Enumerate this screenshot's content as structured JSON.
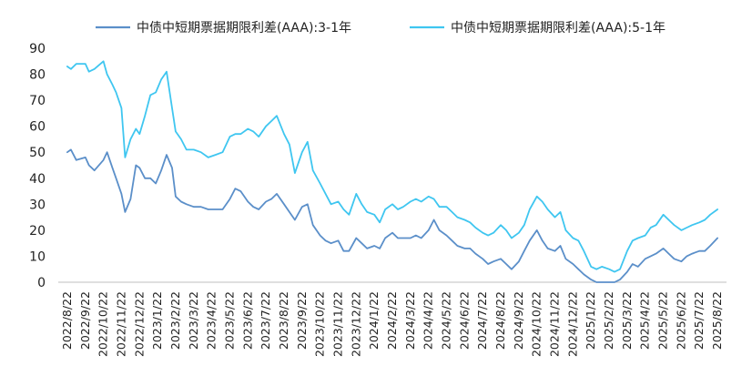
{
  "chart_data": {
    "type": "line",
    "title": "",
    "xlabel": "",
    "ylabel": "",
    "ylim": [
      0,
      90
    ],
    "yticks": [
      0,
      10,
      20,
      30,
      40,
      50,
      60,
      70,
      80,
      90
    ],
    "grid": false,
    "legend_position": "top",
    "categories": [
      "2022/8/22",
      "2022/9/22",
      "2022/10/22",
      "2022/11/22",
      "2022/12/22",
      "2023/1/22",
      "2023/2/22",
      "2023/3/22",
      "2023/4/22",
      "2023/5/22",
      "2023/6/22",
      "2023/7/22",
      "2023/8/22",
      "2023/9/22",
      "2023/10/22",
      "2023/11/22",
      "2023/12/22",
      "2024/1/22",
      "2024/2/22",
      "2024/3/22",
      "2024/4/22",
      "2024/5/22",
      "2024/6/22",
      "2024/7/22",
      "2024/8/22",
      "2024/9/22",
      "2024/10/22",
      "2024/11/22",
      "2024/12/22",
      "2025/1/22",
      "2025/2/22",
      "2025/3/22",
      "2025/4/22",
      "2025/5/22",
      "2025/6/22",
      "2025/7/22",
      "2025/8/22"
    ],
    "series": [
      {
        "name": "中债中短期票据期限利差(AAA):3-1年",
        "color": "#5b8fc9",
        "points": [
          [
            0,
            50
          ],
          [
            0.2,
            51
          ],
          [
            0.5,
            47
          ],
          [
            1,
            48
          ],
          [
            1.2,
            45
          ],
          [
            1.5,
            43
          ],
          [
            2,
            47
          ],
          [
            2.2,
            50
          ],
          [
            2.5,
            44
          ],
          [
            2.7,
            40
          ],
          [
            3,
            34
          ],
          [
            3.2,
            27
          ],
          [
            3.5,
            32
          ],
          [
            3.8,
            45
          ],
          [
            4,
            44
          ],
          [
            4.3,
            40
          ],
          [
            4.6,
            40
          ],
          [
            4.9,
            38
          ],
          [
            5.2,
            43
          ],
          [
            5.5,
            49
          ],
          [
            5.8,
            44
          ],
          [
            6,
            33
          ],
          [
            6.3,
            31
          ],
          [
            6.6,
            30
          ],
          [
            7,
            29
          ],
          [
            7.4,
            29
          ],
          [
            7.8,
            28
          ],
          [
            8.2,
            28
          ],
          [
            8.6,
            28
          ],
          [
            9,
            32
          ],
          [
            9.3,
            36
          ],
          [
            9.6,
            35
          ],
          [
            10,
            31
          ],
          [
            10.3,
            29
          ],
          [
            10.6,
            28
          ],
          [
            11,
            31
          ],
          [
            11.3,
            32
          ],
          [
            11.6,
            34
          ],
          [
            12,
            30
          ],
          [
            12.3,
            27
          ],
          [
            12.6,
            24
          ],
          [
            13,
            29
          ],
          [
            13.3,
            30
          ],
          [
            13.6,
            22
          ],
          [
            14,
            18
          ],
          [
            14.3,
            16
          ],
          [
            14.6,
            15
          ],
          [
            15,
            16
          ],
          [
            15.3,
            12
          ],
          [
            15.6,
            12
          ],
          [
            16,
            17
          ],
          [
            16.3,
            15
          ],
          [
            16.6,
            13
          ],
          [
            17,
            14
          ],
          [
            17.3,
            13
          ],
          [
            17.6,
            17
          ],
          [
            18,
            19
          ],
          [
            18.3,
            17
          ],
          [
            18.6,
            17
          ],
          [
            19,
            17
          ],
          [
            19.3,
            18
          ],
          [
            19.6,
            17
          ],
          [
            20,
            20
          ],
          [
            20.3,
            24
          ],
          [
            20.6,
            20
          ],
          [
            21,
            18
          ],
          [
            21.3,
            16
          ],
          [
            21.6,
            14
          ],
          [
            22,
            13
          ],
          [
            22.3,
            13
          ],
          [
            22.6,
            11
          ],
          [
            23,
            9
          ],
          [
            23.3,
            7
          ],
          [
            23.6,
            8
          ],
          [
            24,
            9
          ],
          [
            24.3,
            7
          ],
          [
            24.6,
            5
          ],
          [
            25,
            8
          ],
          [
            25.3,
            12
          ],
          [
            25.6,
            16
          ],
          [
            26,
            20
          ],
          [
            26.3,
            16
          ],
          [
            26.6,
            13
          ],
          [
            27,
            12
          ],
          [
            27.3,
            14
          ],
          [
            27.6,
            9
          ],
          [
            28,
            7
          ],
          [
            28.3,
            5
          ],
          [
            28.6,
            3
          ],
          [
            29,
            1
          ],
          [
            29.3,
            0
          ],
          [
            29.6,
            0
          ],
          [
            30,
            0
          ],
          [
            30.3,
            0
          ],
          [
            30.6,
            1
          ],
          [
            31,
            4
          ],
          [
            31.3,
            7
          ],
          [
            31.6,
            6
          ],
          [
            32,
            9
          ],
          [
            32.3,
            10
          ],
          [
            32.6,
            11
          ],
          [
            33,
            13
          ],
          [
            33.3,
            11
          ],
          [
            33.6,
            9
          ],
          [
            34,
            8
          ],
          [
            34.3,
            10
          ],
          [
            34.6,
            11
          ],
          [
            35,
            12
          ],
          [
            35.3,
            12
          ],
          [
            35.6,
            14
          ],
          [
            36,
            17
          ]
        ]
      },
      {
        "name": "中债中短期票据期限利差(AAA):5-1年",
        "color": "#3fc6f0",
        "points": [
          [
            0,
            83
          ],
          [
            0.2,
            82
          ],
          [
            0.5,
            84
          ],
          [
            1,
            84
          ],
          [
            1.2,
            81
          ],
          [
            1.5,
            82
          ],
          [
            2,
            85
          ],
          [
            2.2,
            80
          ],
          [
            2.5,
            76
          ],
          [
            2.7,
            73
          ],
          [
            3,
            67
          ],
          [
            3.2,
            48
          ],
          [
            3.5,
            55
          ],
          [
            3.8,
            59
          ],
          [
            4,
            57
          ],
          [
            4.3,
            64
          ],
          [
            4.6,
            72
          ],
          [
            4.9,
            73
          ],
          [
            5.2,
            78
          ],
          [
            5.5,
            81
          ],
          [
            5.8,
            67
          ],
          [
            6,
            58
          ],
          [
            6.3,
            55
          ],
          [
            6.6,
            51
          ],
          [
            7,
            51
          ],
          [
            7.4,
            50
          ],
          [
            7.8,
            48
          ],
          [
            8.2,
            49
          ],
          [
            8.6,
            50
          ],
          [
            9,
            56
          ],
          [
            9.3,
            57
          ],
          [
            9.6,
            57
          ],
          [
            10,
            59
          ],
          [
            10.3,
            58
          ],
          [
            10.6,
            56
          ],
          [
            11,
            60
          ],
          [
            11.3,
            62
          ],
          [
            11.6,
            64
          ],
          [
            12,
            57
          ],
          [
            12.3,
            53
          ],
          [
            12.6,
            42
          ],
          [
            13,
            50
          ],
          [
            13.3,
            54
          ],
          [
            13.6,
            43
          ],
          [
            14,
            38
          ],
          [
            14.3,
            34
          ],
          [
            14.6,
            30
          ],
          [
            15,
            31
          ],
          [
            15.3,
            28
          ],
          [
            15.6,
            26
          ],
          [
            16,
            34
          ],
          [
            16.3,
            30
          ],
          [
            16.6,
            27
          ],
          [
            17,
            26
          ],
          [
            17.3,
            23
          ],
          [
            17.6,
            28
          ],
          [
            18,
            30
          ],
          [
            18.3,
            28
          ],
          [
            18.6,
            29
          ],
          [
            19,
            31
          ],
          [
            19.3,
            32
          ],
          [
            19.6,
            31
          ],
          [
            20,
            33
          ],
          [
            20.3,
            32
          ],
          [
            20.6,
            29
          ],
          [
            21,
            29
          ],
          [
            21.3,
            27
          ],
          [
            21.6,
            25
          ],
          [
            22,
            24
          ],
          [
            22.3,
            23
          ],
          [
            22.6,
            21
          ],
          [
            23,
            19
          ],
          [
            23.3,
            18
          ],
          [
            23.6,
            19
          ],
          [
            24,
            22
          ],
          [
            24.3,
            20
          ],
          [
            24.6,
            17
          ],
          [
            25,
            19
          ],
          [
            25.3,
            22
          ],
          [
            25.6,
            28
          ],
          [
            26,
            33
          ],
          [
            26.3,
            31
          ],
          [
            26.6,
            28
          ],
          [
            27,
            25
          ],
          [
            27.3,
            27
          ],
          [
            27.6,
            20
          ],
          [
            28,
            17
          ],
          [
            28.3,
            16
          ],
          [
            28.6,
            12
          ],
          [
            29,
            6
          ],
          [
            29.3,
            5
          ],
          [
            29.6,
            6
          ],
          [
            30,
            5
          ],
          [
            30.3,
            4
          ],
          [
            30.6,
            5
          ],
          [
            31,
            12
          ],
          [
            31.3,
            16
          ],
          [
            31.6,
            17
          ],
          [
            32,
            18
          ],
          [
            32.3,
            21
          ],
          [
            32.6,
            22
          ],
          [
            33,
            26
          ],
          [
            33.3,
            24
          ],
          [
            33.6,
            22
          ],
          [
            34,
            20
          ],
          [
            34.3,
            21
          ],
          [
            34.6,
            22
          ],
          [
            35,
            23
          ],
          [
            35.3,
            24
          ],
          [
            35.6,
            26
          ],
          [
            36,
            28
          ]
        ]
      }
    ]
  }
}
